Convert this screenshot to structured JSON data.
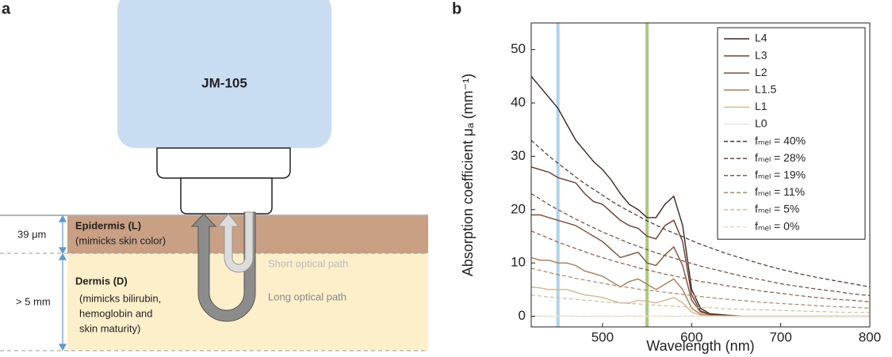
{
  "panel_a": {
    "label": "a",
    "device": "JM-105",
    "epidermis_thickness": "39 μm",
    "epidermis_title": "Epidermis (L)",
    "epidermis_note": "(mimicks skin color)",
    "dermis_thickness": "> 5 mm",
    "dermis_title": "Dermis (D)",
    "dermis_note": [
      "(mimicks bilirubin,",
      "hemoglobin and",
      "skin maturity)"
    ],
    "short_path": "Short optical path",
    "long_path": "Long optical path"
  },
  "panel_b_label": "b",
  "chart_data": {
    "type": "line",
    "x_label": "Wavelength (nm)",
    "y_label": "Absorption coefficient μₐ (mm⁻¹)",
    "xlim": [
      420,
      800
    ],
    "ylim": [
      -2,
      55
    ],
    "xticks": [
      500,
      600,
      700,
      800
    ],
    "yticks": [
      0,
      10,
      20,
      30,
      40,
      50
    ],
    "markers": [
      {
        "x": 450,
        "color": "#a9d4ee"
      },
      {
        "x": 550,
        "color": "#a8cc7c"
      }
    ],
    "x": [
      420,
      430,
      440,
      450,
      460,
      470,
      480,
      490,
      500,
      510,
      520,
      530,
      540,
      550,
      560,
      570,
      580,
      590,
      600,
      610,
      620,
      640,
      660,
      680,
      700,
      720,
      740,
      760,
      780,
      800
    ],
    "series": [
      {
        "name": "L4",
        "color": "#3b2620",
        "dash": false,
        "values": [
          45,
          43,
          41,
          39,
          36,
          33,
          31,
          29,
          27.5,
          25.5,
          23,
          21,
          20,
          18.5,
          18.5,
          21,
          22.5,
          17,
          5,
          1.5,
          0.5,
          0.2,
          0,
          0,
          0,
          0,
          0,
          0,
          0,
          0
        ]
      },
      {
        "name": "L3",
        "color": "#6b3a2a",
        "dash": false,
        "values": [
          28,
          27.5,
          27,
          26,
          25.5,
          25,
          23,
          21.5,
          21,
          19.5,
          18,
          17,
          16.5,
          15,
          14.5,
          17,
          18,
          14,
          4,
          1,
          0.4,
          0,
          0,
          0,
          0,
          0,
          0,
          0,
          0,
          0
        ]
      },
      {
        "name": "L2",
        "color": "#8a4b32",
        "dash": false,
        "values": [
          19,
          19,
          18.5,
          18,
          17.5,
          17,
          16,
          15,
          14,
          12.5,
          11,
          11.5,
          12,
          10,
          9.5,
          11.5,
          13,
          9.5,
          3,
          0.8,
          0.3,
          0,
          0,
          0,
          0,
          0,
          0,
          0,
          0,
          0
        ]
      },
      {
        "name": "L1.5",
        "color": "#b07a56",
        "dash": false,
        "values": [
          11,
          10.5,
          10.5,
          10,
          10,
          9.5,
          8.5,
          8,
          7.5,
          6.5,
          5.5,
          6.5,
          7,
          6,
          5,
          6,
          7,
          5,
          1.5,
          0.4,
          0.1,
          0,
          0,
          0,
          0,
          0,
          0,
          0,
          0,
          0
        ]
      },
      {
        "name": "L1",
        "color": "#dcb58a",
        "dash": false,
        "values": [
          5.5,
          5.3,
          5,
          5,
          5,
          4.5,
          4,
          3.8,
          3.5,
          3,
          2.5,
          2.5,
          3,
          2.8,
          2.5,
          3,
          3.5,
          2.5,
          0.8,
          0.2,
          0,
          0,
          0,
          0,
          0,
          0,
          0,
          0,
          0,
          0
        ]
      },
      {
        "name": "L0",
        "color": "#ece6e0",
        "dash": false,
        "values": [
          0,
          0,
          0,
          0,
          0,
          0,
          0,
          0,
          0,
          0,
          0,
          0,
          0,
          0,
          0,
          0,
          0,
          0,
          0,
          0,
          0,
          0,
          0,
          0,
          0,
          0,
          0,
          0,
          0,
          0
        ]
      },
      {
        "name": "fₘₑₗ = 40%",
        "color": "#4a342c",
        "dash": true,
        "values": [
          33,
          31.5,
          30,
          28.7,
          27.4,
          26.1,
          24.9,
          23.8,
          22.7,
          21.6,
          20.6,
          19.7,
          18.8,
          17.9,
          17.1,
          16.3,
          15.6,
          14.9,
          14.2,
          13.5,
          12.9,
          11.7,
          10.7,
          9.7,
          8.8,
          8,
          7.3,
          6.7,
          6.1,
          5.5
        ]
      },
      {
        "name": "fₘₑₗ = 28%",
        "color": "#7a4636",
        "dash": true,
        "values": [
          23,
          22,
          20.9,
          20,
          19.1,
          18.2,
          17.4,
          16.6,
          15.8,
          15.1,
          14.4,
          13.7,
          13.1,
          12.5,
          11.9,
          11.4,
          10.9,
          10.4,
          9.9,
          9.4,
          9,
          8.2,
          7.4,
          6.8,
          6.1,
          5.6,
          5.1,
          4.7,
          4.2,
          3.9
        ]
      },
      {
        "name": "fₘₑₗ = 19%",
        "color": "#95573e",
        "dash": true,
        "values": [
          16,
          15.3,
          14.6,
          13.9,
          13.3,
          12.7,
          12.1,
          11.5,
          11,
          10.5,
          10,
          9.6,
          9.1,
          8.7,
          8.3,
          7.9,
          7.6,
          7.2,
          6.9,
          6.5,
          6.3,
          5.7,
          5.2,
          4.7,
          4.3,
          3.9,
          3.5,
          3.2,
          3,
          2.7
        ]
      },
      {
        "name": "fₘₑₗ = 11%",
        "color": "#b58562",
        "dash": true,
        "values": [
          9,
          8.6,
          8.2,
          7.8,
          7.5,
          7.1,
          6.8,
          6.5,
          6.2,
          5.9,
          5.6,
          5.4,
          5.1,
          4.9,
          4.7,
          4.5,
          4.3,
          4.1,
          3.9,
          3.7,
          3.5,
          3.2,
          2.9,
          2.6,
          2.4,
          2.2,
          2,
          1.8,
          1.7,
          1.5
        ]
      },
      {
        "name": "fₘₑₗ = 5%",
        "color": "#d8bc96",
        "dash": true,
        "values": [
          4,
          3.8,
          3.6,
          3.5,
          3.3,
          3.2,
          3,
          2.9,
          2.7,
          2.6,
          2.5,
          2.4,
          2.3,
          2.2,
          2.1,
          2,
          1.9,
          1.8,
          1.7,
          1.6,
          1.6,
          1.4,
          1.3,
          1.2,
          1.1,
          1,
          0.9,
          0.8,
          0.7,
          0.7
        ]
      },
      {
        "name": "fₘₑₗ = 0%",
        "color": "#f0dcb4",
        "dash": true,
        "values": [
          0,
          0,
          0,
          0,
          0,
          0,
          0,
          0,
          0,
          0,
          0,
          0,
          0,
          0,
          0,
          0,
          0,
          0,
          0,
          0,
          0,
          0,
          0,
          0,
          0,
          0,
          0,
          0,
          0,
          0
        ]
      }
    ]
  }
}
